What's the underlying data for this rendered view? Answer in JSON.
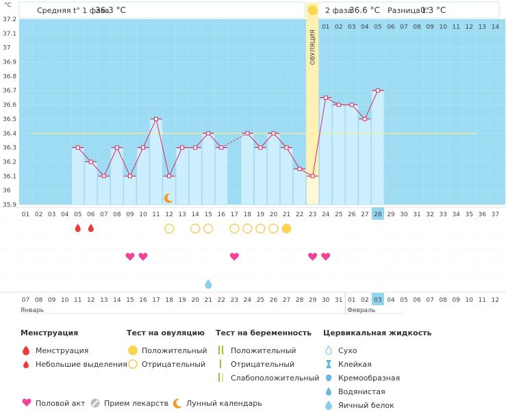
{
  "header": {
    "unit": "°C",
    "phase1_label": "Средняя t° 1 фаза",
    "phase1_value": "36.3 °C",
    "phase2_label": "2 фаза",
    "phase2_value": "36.6 °C",
    "diff_label": "Разница t°",
    "diff_value": "0.3 °C",
    "ovulation_label": "ОВУЛЯЦИЯ"
  },
  "colors": {
    "sky": "#9ddcf2",
    "bar": "#cdeefc",
    "bar_border": "#9ed1ea",
    "line": "#d12d63",
    "ovulation": "#fff0b3",
    "sun": "#fbd550",
    "heart": "#f0449a",
    "drop": "#ec3a3a",
    "today": "#8fd4f0",
    "red_date": "#d4145a",
    "coverline": "#f0f0a0"
  },
  "chart_data": {
    "type": "bar",
    "y_ticks": [
      "35.9",
      "36",
      "36.1",
      "36.2",
      "36.3",
      "36.4",
      "36.5",
      "36.6",
      "36.7",
      "36.8",
      "36.9",
      "37",
      "37.1",
      "37.2"
    ],
    "ylim": [
      35.9,
      37.2
    ],
    "coverline": 36.4,
    "cycle_days": [
      "01",
      "02",
      "03",
      "04",
      "05",
      "06",
      "07",
      "08",
      "09",
      "10",
      "11",
      "12",
      "13",
      "14",
      "15",
      "16",
      "17",
      "18",
      "19",
      "20",
      "21",
      "22",
      "23",
      "24",
      "25",
      "26",
      "27",
      "28",
      "29",
      "30",
      "31",
      "32",
      "33",
      "34",
      "35",
      "36",
      "37"
    ],
    "temperatures": [
      null,
      null,
      null,
      null,
      36.3,
      36.2,
      36.1,
      36.3,
      36.1,
      36.3,
      36.5,
      36.1,
      36.3,
      36.3,
      36.4,
      36.3,
      null,
      36.4,
      36.3,
      36.4,
      36.3,
      36.15,
      36.1,
      36.65,
      36.6,
      36.6,
      36.5,
      36.7,
      null,
      null,
      null,
      null,
      null,
      null,
      null,
      null,
      null
    ],
    "phase2_top_days": [
      "01",
      "02",
      "03",
      "04",
      "05",
      "06",
      "07",
      "08",
      "09",
      "10",
      "11",
      "12",
      "13",
      "14"
    ],
    "ovulation_day_index": 22,
    "today_index": 27,
    "moon_day_index": 11,
    "calendar_dates": [
      "07",
      "08",
      "09",
      "10",
      "11",
      "12",
      "13",
      "14",
      "15",
      "16",
      "17",
      "18",
      "19",
      "20",
      "21",
      "22",
      "23",
      "24",
      "25",
      "26",
      "27",
      "28",
      "29",
      "30",
      "31",
      "01",
      "02",
      "03",
      "04",
      "05",
      "06",
      "07",
      "08",
      "09",
      "10",
      "11",
      "12"
    ],
    "red_date_indices": [
      2,
      3,
      9,
      10,
      16,
      17,
      22,
      23,
      24,
      30,
      31
    ],
    "months": [
      "Январь",
      "Февраль"
    ],
    "feb_start_index": 25,
    "menstruation_days": [
      5,
      6
    ],
    "ovulation_negative_days": [
      12,
      14,
      15,
      17,
      18,
      19,
      20
    ],
    "ovulation_positive_days": [
      21
    ],
    "intercourse_days": [
      9,
      10,
      17,
      23,
      24
    ],
    "mucus_eggwhite_days": [
      15
    ]
  },
  "legend": {
    "menstruation": {
      "title": "Менструация",
      "items": [
        "Менструация",
        "Небольшие выделения"
      ]
    },
    "ovulation_test": {
      "title": "Тест на овуляцию",
      "items": [
        "Положительный",
        "Отрицательный"
      ]
    },
    "pregnancy_test": {
      "title": "Тест на беременность",
      "items": [
        "Положительный",
        "Отрицательный",
        "Слабоположительный"
      ]
    },
    "mucus": {
      "title": "Цервикальная жидкость",
      "items": [
        "Сухо",
        "Клейкая",
        "Кремообразная",
        "Водянистая",
        "Яичный белок"
      ]
    },
    "bottom": [
      "Половой акт",
      "Прием лекарств",
      "Лунный календарь"
    ]
  }
}
